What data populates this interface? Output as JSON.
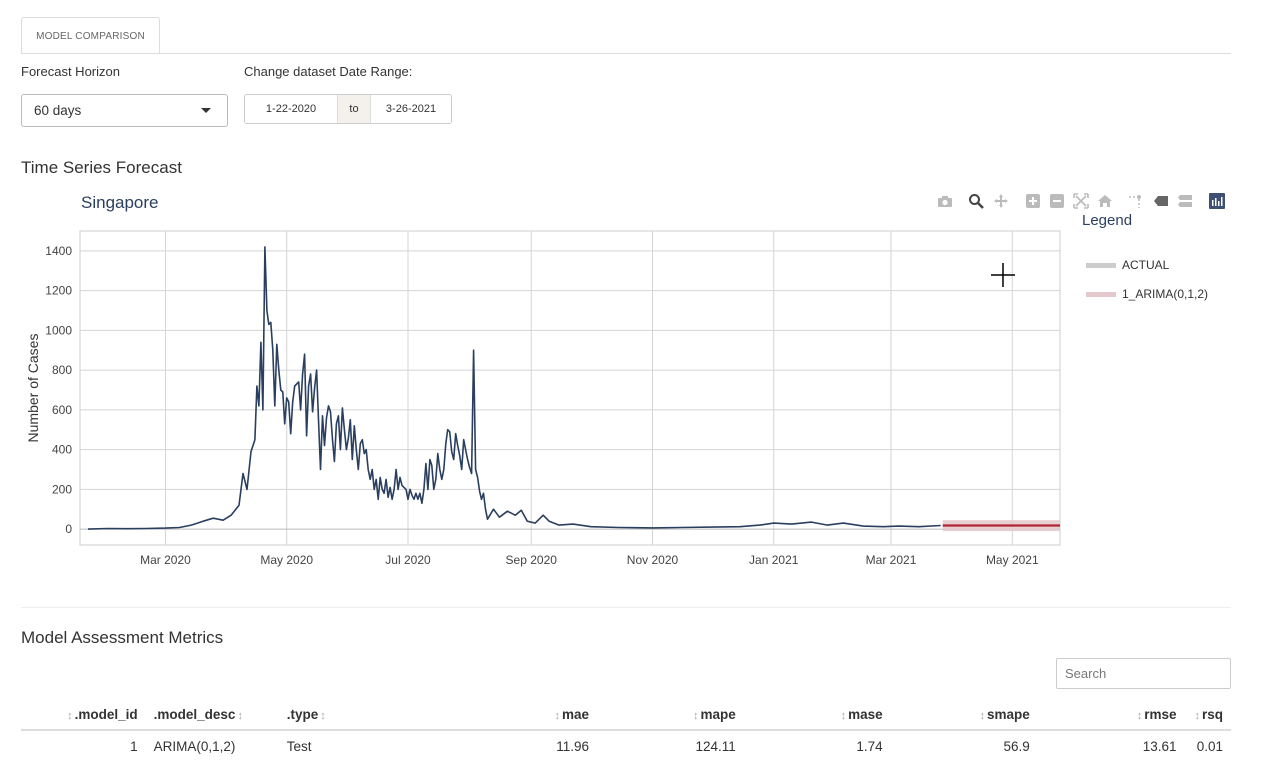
{
  "tabs": [
    {
      "label": "MODEL COMPARISON"
    }
  ],
  "controls": {
    "horizon_label": "Forecast Horizon",
    "horizon_value": "60 days",
    "date_label": "Change dataset Date Range:",
    "date_start": "1-22-2020",
    "date_sep": "to",
    "date_end": "3-26-2021"
  },
  "forecast": {
    "section_title": "Time Series Forecast",
    "plot_title": "Singapore",
    "legend_title": "Legend",
    "legend_items": [
      {
        "label": "ACTUAL",
        "color": "#cccccc"
      },
      {
        "label": "1_ARIMA(0,1,2)",
        "color": "#e3c8cc"
      }
    ],
    "modebar": [
      "camera-icon",
      "zoom-icon",
      "pan-icon",
      "zoom-in-icon",
      "zoom-out-icon",
      "autoscale-icon",
      "reset-axes-icon",
      "spike-lines-icon",
      "hover-closest-icon",
      "hover-compare-icon",
      "plotly-logo-icon"
    ]
  },
  "chart_data": {
    "type": "line",
    "title": "Singapore",
    "xlabel": "",
    "ylabel": "Number of Cases",
    "xlim": [
      "2020-01-18",
      "2021-05-25"
    ],
    "ylim": [
      -80,
      1500
    ],
    "grid": true,
    "legend_placement": "right",
    "x_ticks": [
      "Mar 2020",
      "May 2020",
      "Jul 2020",
      "Sep 2020",
      "Nov 2020",
      "Jan 2021",
      "Mar 2021",
      "May 2021"
    ],
    "y_ticks": [
      0,
      200,
      400,
      600,
      800,
      1000,
      1200,
      1400
    ],
    "series": [
      {
        "name": "ACTUAL",
        "color": "#2a3f5f",
        "points": [
          [
            "2020-01-22",
            0
          ],
          [
            "2020-02-01",
            3
          ],
          [
            "2020-02-10",
            2
          ],
          [
            "2020-02-20",
            3
          ],
          [
            "2020-03-01",
            5
          ],
          [
            "2020-03-08",
            8
          ],
          [
            "2020-03-14",
            20
          ],
          [
            "2020-03-20",
            40
          ],
          [
            "2020-03-25",
            55
          ],
          [
            "2020-03-30",
            45
          ],
          [
            "2020-04-03",
            70
          ],
          [
            "2020-04-07",
            120
          ],
          [
            "2020-04-09",
            280
          ],
          [
            "2020-04-11",
            200
          ],
          [
            "2020-04-13",
            390
          ],
          [
            "2020-04-15",
            450
          ],
          [
            "2020-04-16",
            720
          ],
          [
            "2020-04-17",
            620
          ],
          [
            "2020-04-18",
            940
          ],
          [
            "2020-04-19",
            600
          ],
          [
            "2020-04-20",
            1420
          ],
          [
            "2020-04-21",
            1100
          ],
          [
            "2020-04-22",
            1030
          ],
          [
            "2020-04-23",
            1040
          ],
          [
            "2020-04-24",
            900
          ],
          [
            "2020-04-25",
            620
          ],
          [
            "2020-04-26",
            930
          ],
          [
            "2020-04-27",
            800
          ],
          [
            "2020-04-28",
            700
          ],
          [
            "2020-04-29",
            690
          ],
          [
            "2020-04-30",
            530
          ],
          [
            "2020-05-01",
            660
          ],
          [
            "2020-05-02",
            640
          ],
          [
            "2020-05-03",
            480
          ],
          [
            "2020-05-04",
            640
          ],
          [
            "2020-05-05",
            720
          ],
          [
            "2020-05-06",
            730
          ],
          [
            "2020-05-07",
            740
          ],
          [
            "2020-05-08",
            600
          ],
          [
            "2020-05-09",
            780
          ],
          [
            "2020-05-10",
            880
          ],
          [
            "2020-05-11",
            470
          ],
          [
            "2020-05-12",
            720
          ],
          [
            "2020-05-13",
            780
          ],
          [
            "2020-05-14",
            590
          ],
          [
            "2020-05-15",
            710
          ],
          [
            "2020-05-16",
            800
          ],
          [
            "2020-05-17",
            550
          ],
          [
            "2020-05-18",
            300
          ],
          [
            "2020-05-19",
            570
          ],
          [
            "2020-05-20",
            420
          ],
          [
            "2020-05-21",
            560
          ],
          [
            "2020-05-22",
            620
          ],
          [
            "2020-05-23",
            590
          ],
          [
            "2020-05-24",
            450
          ],
          [
            "2020-05-25",
            340
          ],
          [
            "2020-05-26",
            530
          ],
          [
            "2020-05-27",
            570
          ],
          [
            "2020-05-28",
            400
          ],
          [
            "2020-05-29",
            610
          ],
          [
            "2020-05-30",
            500
          ],
          [
            "2020-05-31",
            400
          ],
          [
            "2020-06-01",
            460
          ],
          [
            "2020-06-02",
            550
          ],
          [
            "2020-06-03",
            350
          ],
          [
            "2020-06-04",
            520
          ],
          [
            "2020-06-05",
            400
          ],
          [
            "2020-06-06",
            300
          ],
          [
            "2020-06-07",
            430
          ],
          [
            "2020-06-08",
            450
          ],
          [
            "2020-06-09",
            380
          ],
          [
            "2020-06-10",
            400
          ],
          [
            "2020-06-11",
            300
          ],
          [
            "2020-06-12",
            250
          ],
          [
            "2020-06-13",
            300
          ],
          [
            "2020-06-14",
            200
          ],
          [
            "2020-06-15",
            250
          ],
          [
            "2020-06-16",
            150
          ],
          [
            "2020-06-17",
            260
          ],
          [
            "2020-06-18",
            200
          ],
          [
            "2020-06-19",
            180
          ],
          [
            "2020-06-20",
            250
          ],
          [
            "2020-06-21",
            160
          ],
          [
            "2020-06-22",
            210
          ],
          [
            "2020-06-23",
            150
          ],
          [
            "2020-06-24",
            200
          ],
          [
            "2020-06-25",
            300
          ],
          [
            "2020-06-26",
            200
          ],
          [
            "2020-06-27",
            260
          ],
          [
            "2020-06-28",
            220
          ],
          [
            "2020-06-30",
            200
          ],
          [
            "2020-07-01",
            150
          ],
          [
            "2020-07-02",
            200
          ],
          [
            "2020-07-03",
            170
          ],
          [
            "2020-07-04",
            150
          ],
          [
            "2020-07-05",
            180
          ],
          [
            "2020-07-06",
            150
          ],
          [
            "2020-07-07",
            180
          ],
          [
            "2020-07-08",
            130
          ],
          [
            "2020-07-09",
            200
          ],
          [
            "2020-07-10",
            330
          ],
          [
            "2020-07-11",
            200
          ],
          [
            "2020-07-12",
            350
          ],
          [
            "2020-07-13",
            320
          ],
          [
            "2020-07-14",
            200
          ],
          [
            "2020-07-15",
            250
          ],
          [
            "2020-07-16",
            380
          ],
          [
            "2020-07-17",
            300
          ],
          [
            "2020-07-18",
            250
          ],
          [
            "2020-07-19",
            300
          ],
          [
            "2020-07-20",
            430
          ],
          [
            "2020-07-21",
            500
          ],
          [
            "2020-07-22",
            490
          ],
          [
            "2020-07-23",
            390
          ],
          [
            "2020-07-24",
            350
          ],
          [
            "2020-07-25",
            480
          ],
          [
            "2020-07-26",
            420
          ],
          [
            "2020-07-27",
            370
          ],
          [
            "2020-07-28",
            300
          ],
          [
            "2020-07-29",
            450
          ],
          [
            "2020-07-30",
            400
          ],
          [
            "2020-07-31",
            350
          ],
          [
            "2020-08-01",
            310
          ],
          [
            "2020-08-02",
            280
          ],
          [
            "2020-08-03",
            900
          ],
          [
            "2020-08-04",
            300
          ],
          [
            "2020-08-05",
            260
          ],
          [
            "2020-08-06",
            190
          ],
          [
            "2020-08-07",
            150
          ],
          [
            "2020-08-08",
            180
          ],
          [
            "2020-08-09",
            100
          ],
          [
            "2020-08-10",
            50
          ],
          [
            "2020-08-13",
            100
          ],
          [
            "2020-08-16",
            60
          ],
          [
            "2020-08-20",
            90
          ],
          [
            "2020-08-24",
            70
          ],
          [
            "2020-08-27",
            95
          ],
          [
            "2020-08-30",
            40
          ],
          [
            "2020-09-03",
            30
          ],
          [
            "2020-09-07",
            70
          ],
          [
            "2020-09-10",
            40
          ],
          [
            "2020-09-15",
            20
          ],
          [
            "2020-09-22",
            25
          ],
          [
            "2020-10-01",
            12
          ],
          [
            "2020-10-15",
            8
          ],
          [
            "2020-11-01",
            6
          ],
          [
            "2020-11-15",
            8
          ],
          [
            "2020-12-01",
            10
          ],
          [
            "2020-12-15",
            12
          ],
          [
            "2020-12-25",
            20
          ],
          [
            "2021-01-01",
            30
          ],
          [
            "2021-01-10",
            25
          ],
          [
            "2021-01-20",
            35
          ],
          [
            "2021-01-28",
            20
          ],
          [
            "2021-02-05",
            30
          ],
          [
            "2021-02-15",
            15
          ],
          [
            "2021-02-25",
            12
          ],
          [
            "2021-03-05",
            15
          ],
          [
            "2021-03-15",
            12
          ],
          [
            "2021-03-26",
            18
          ]
        ]
      },
      {
        "name": "1_ARIMA(0,1,2)",
        "color": "#b22232",
        "band_color": "#e3c8cc",
        "points": [
          [
            "2021-03-27",
            18
          ],
          [
            "2021-05-25",
            18
          ]
        ],
        "band": [
          [
            -10,
            45
          ],
          [
            -10,
            45
          ]
        ]
      }
    ]
  },
  "metrics": {
    "section_title": "Model Assessment Metrics",
    "search_placeholder": "Search",
    "columns": [
      ".model_id",
      ".model_desc",
      ".type",
      "mae",
      "mape",
      "mase",
      "smape",
      "rmse",
      "rsq"
    ],
    "rows": [
      [
        "1",
        "ARIMA(0,1,2)",
        "Test",
        "11.96",
        "124.11",
        "1.74",
        "56.9",
        "13.61",
        "0.01"
      ]
    ]
  }
}
